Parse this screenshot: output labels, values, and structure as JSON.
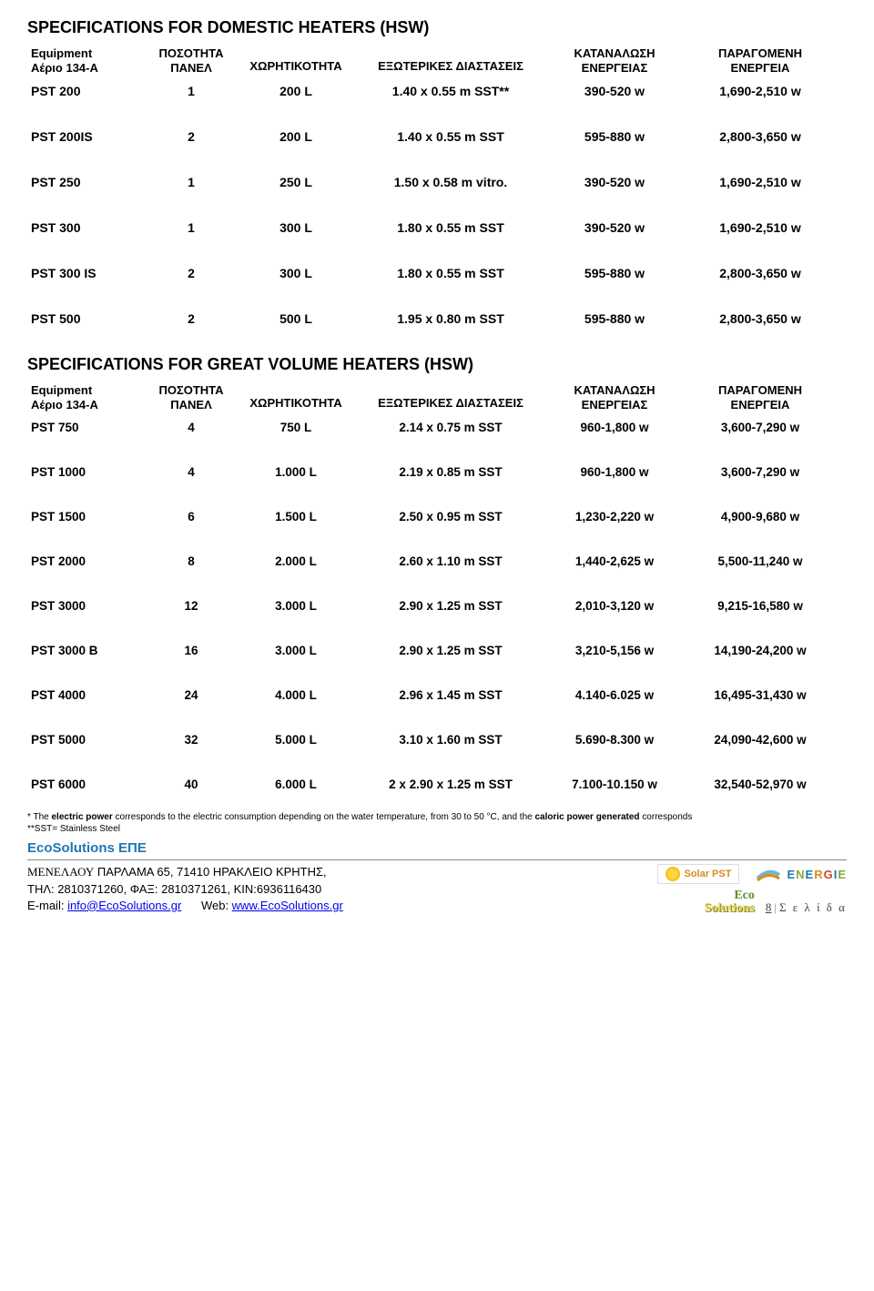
{
  "spec1": {
    "title": "SPECIFICATIONS FOR DOMESTIC HEATERS (HSW)",
    "headers": {
      "c1a": "Equipment",
      "c1b": "Αέριο 134-A",
      "c2a": "ΠΟΣΟΤΗΤΑ",
      "c2b": "ΠΑΝΕΛ",
      "c3": "ΧΩΡΗΤΙΚΟΤΗΤΑ",
      "c4": "ΕΞΩΤΕΡΙΚΕΣ ΔΙΑΣΤΑΣΕΙΣ",
      "c5a": "ΚΑΤΑΝΑΛΩΣΗ",
      "c5b": "ΕΝΕΡΓΕΙΑΣ",
      "c6a": "ΠΑΡΑΓΟΜΕΝΗ",
      "c6b": "ΕΝΕΡΓΕΙΑ"
    },
    "rows": [
      {
        "c1": "PST 200",
        "c2": "1",
        "c3": "200 L",
        "c4": "1.40 x 0.55 m SST**",
        "c5": "390-520 w",
        "c6": "1,690-2,510 w"
      },
      {
        "c1": "PST 200IS",
        "c2": "2",
        "c3": "200 L",
        "c4": "1.40 x 0.55 m SST",
        "c5": "595-880 w",
        "c6": "2,800-3,650 w"
      },
      {
        "c1": "PST 250",
        "c2": "1",
        "c3": "250 L",
        "c4": "1.50 x 0.58 m vitro.",
        "c5": "390-520 w",
        "c6": "1,690-2,510 w"
      },
      {
        "c1": "PST 300",
        "c2": "1",
        "c3": "300 L",
        "c4": "1.80 x 0.55 m SST",
        "c5": "390-520 w",
        "c6": "1,690-2,510 w"
      },
      {
        "c1": "PST 300 IS",
        "c2": "2",
        "c3": "300 L",
        "c4": "1.80 x 0.55 m SST",
        "c5": "595-880 w",
        "c6": "2,800-3,650 w"
      },
      {
        "c1": "PST 500",
        "c2": "2",
        "c3": "500 L",
        "c4": "1.95 x 0.80 m SST",
        "c5": "595-880 w",
        "c6": "2,800-3,650 w"
      }
    ]
  },
  "spec2": {
    "title": "SPECIFICATIONS FOR GREAT VOLUME HEATERS (HSW)",
    "headers": {
      "c1a": "Equipment",
      "c1b": "Αέριο 134-A",
      "c2a": "ΠΟΣΟΤΗΤΑ",
      "c2b": "ΠΑΝΕΛ",
      "c3": "ΧΩΡΗΤΙΚΟΤΗΤΑ",
      "c4": "ΕΞΩΤΕΡΙΚΕΣ ΔΙΑΣΤΑΣΕΙΣ",
      "c5a": "ΚΑΤΑΝΑΛΩΣΗ",
      "c5b": "ΕΝΕΡΓΕΙΑΣ",
      "c6a": "ΠΑΡΑΓΟΜΕΝΗ",
      "c6b": "ΕΝΕΡΓΕΙΑ"
    },
    "rows": [
      {
        "c1": "PST 750",
        "c2": "4",
        "c3": "750 L",
        "c4": "2.14 x 0.75 m SST",
        "c5": "960-1,800 w",
        "c6": "3,600-7,290 w"
      },
      {
        "c1": "PST 1000",
        "c2": "4",
        "c3": "1.000 L",
        "c4": "2.19 x 0.85 m SST",
        "c5": "960-1,800 w",
        "c6": "3,600-7,290 w"
      },
      {
        "c1": "PST 1500",
        "c2": "6",
        "c3": "1.500 L",
        "c4": "2.50 x 0.95 m SST",
        "c5": "1,230-2,220 w",
        "c6": "4,900-9,680 w"
      },
      {
        "c1": "PST 2000",
        "c2": "8",
        "c3": "2.000 L",
        "c4": "2.60 x 1.10 m SST",
        "c5": "1,440-2,625 w",
        "c6": "5,500-11,240 w"
      },
      {
        "c1": "PST 3000",
        "c2": "12",
        "c3": "3.000 L",
        "c4": "2.90 x 1.25 m SST",
        "c5": "2,010-3,120 w",
        "c6": "9,215-16,580 w"
      },
      {
        "c1": "PST 3000 B",
        "c2": "16",
        "c3": "3.000 L",
        "c4": "2.90 x 1.25 m SST",
        "c5": "3,210-5,156 w",
        "c6": "14,190-24,200 w"
      },
      {
        "c1": "PST 4000",
        "c2": "24",
        "c3": "4.000 L",
        "c4": "2.96 x 1.45 m SST",
        "c5": "4.140-6.025 w",
        "c6": "16,495-31,430 w"
      },
      {
        "c1": "PST 5000",
        "c2": "32",
        "c3": "5.000 L",
        "c4": "3.10 x 1.60 m SST",
        "c5": "5.690-8.300 w",
        "c6": "24,090-42,600 w"
      },
      {
        "c1": "PST 6000",
        "c2": "40",
        "c3": "6.000 L",
        "c4": "2 x 2.90 x 1.25 m SST",
        "c5": "7.100-10.150 w",
        "c6": "32,540-52,970 w"
      }
    ]
  },
  "footnote": {
    "line1_pre": "* The ",
    "line1_b1": "electric power",
    "line1_mid": " corresponds to the electric consumption depending on the water temperature, from 30 to 50 °C, and the ",
    "line1_b2": "caloric power generated",
    "line1_post": " corresponds",
    "line2": "**SST= Stainless Steel"
  },
  "company": "EcoSolutions ΕΠΕ",
  "footer": {
    "addr_name": "ΜΕΝΕΛΑΟΥ",
    "addr_rest": " ΠΑΡΛΑΜΑ 65, 71410 ΗΡΑΚΛΕΙΟ ΚΡΗΤΗΣ,",
    "tel": "ΤΗΛ: 2810371260,   ΦΑΞ: 2810371261, ΚΙΝ:6936116430",
    "email_label": "E-mail: ",
    "email": "info@EcoSolutions.gr",
    "web_label": "Web: ",
    "web": "www.EcoSolutions.gr",
    "solarpst": "Solar PST",
    "energie": "ENERGIE",
    "eco1": "Eco",
    "eco2": "Solutions",
    "page_num": "8",
    "page_label": "Σ ε λ ί δ α"
  }
}
